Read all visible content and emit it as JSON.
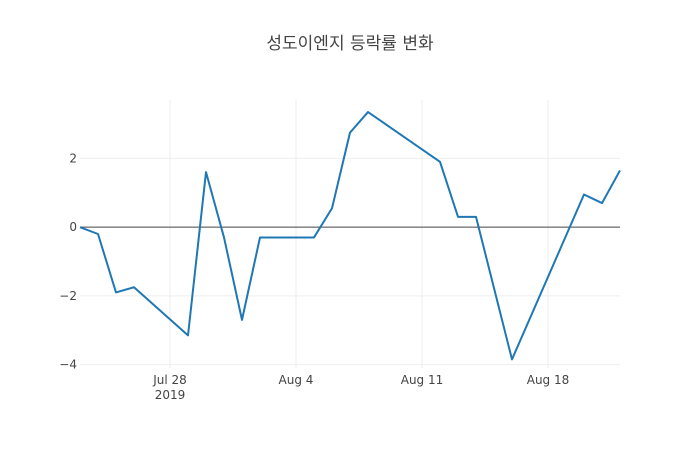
{
  "chart_data": {
    "type": "line",
    "title": "성도이엔지 등락률 변화",
    "xlabel": "",
    "ylabel": "",
    "x_range": [
      "2019-07-23",
      "2019-08-22"
    ],
    "ylim": [
      -4.1,
      3.7
    ],
    "grid": true,
    "zero_line": true,
    "x_ticks": [
      {
        "date": "2019-07-28",
        "label": "Jul 28",
        "sublabel": "2019"
      },
      {
        "date": "2019-08-04",
        "label": "Aug 4",
        "sublabel": ""
      },
      {
        "date": "2019-08-11",
        "label": "Aug 11",
        "sublabel": ""
      },
      {
        "date": "2019-08-18",
        "label": "Aug 18",
        "sublabel": ""
      }
    ],
    "y_ticks": [
      {
        "value": 2,
        "label": "2"
      },
      {
        "value": 0,
        "label": "0"
      },
      {
        "value": -2,
        "label": "−2"
      },
      {
        "value": -4,
        "label": "−4"
      }
    ],
    "series": [
      {
        "color": "#1f77b4",
        "x": [
          "2019-07-23",
          "2019-07-24",
          "2019-07-25",
          "2019-07-26",
          "2019-07-29",
          "2019-07-30",
          "2019-07-31",
          "2019-08-01",
          "2019-08-02",
          "2019-08-05",
          "2019-08-06",
          "2019-08-07",
          "2019-08-08",
          "2019-08-12",
          "2019-08-13",
          "2019-08-14",
          "2019-08-16",
          "2019-08-19",
          "2019-08-20",
          "2019-08-21",
          "2019-08-22"
        ],
        "y": [
          0.0,
          -0.2,
          -1.9,
          -1.75,
          -3.15,
          1.6,
          -0.3,
          -2.7,
          -0.3,
          -0.3,
          0.55,
          2.75,
          3.35,
          1.9,
          0.3,
          0.3,
          -3.85,
          -0.25,
          0.95,
          0.7,
          1.65
        ]
      }
    ]
  }
}
